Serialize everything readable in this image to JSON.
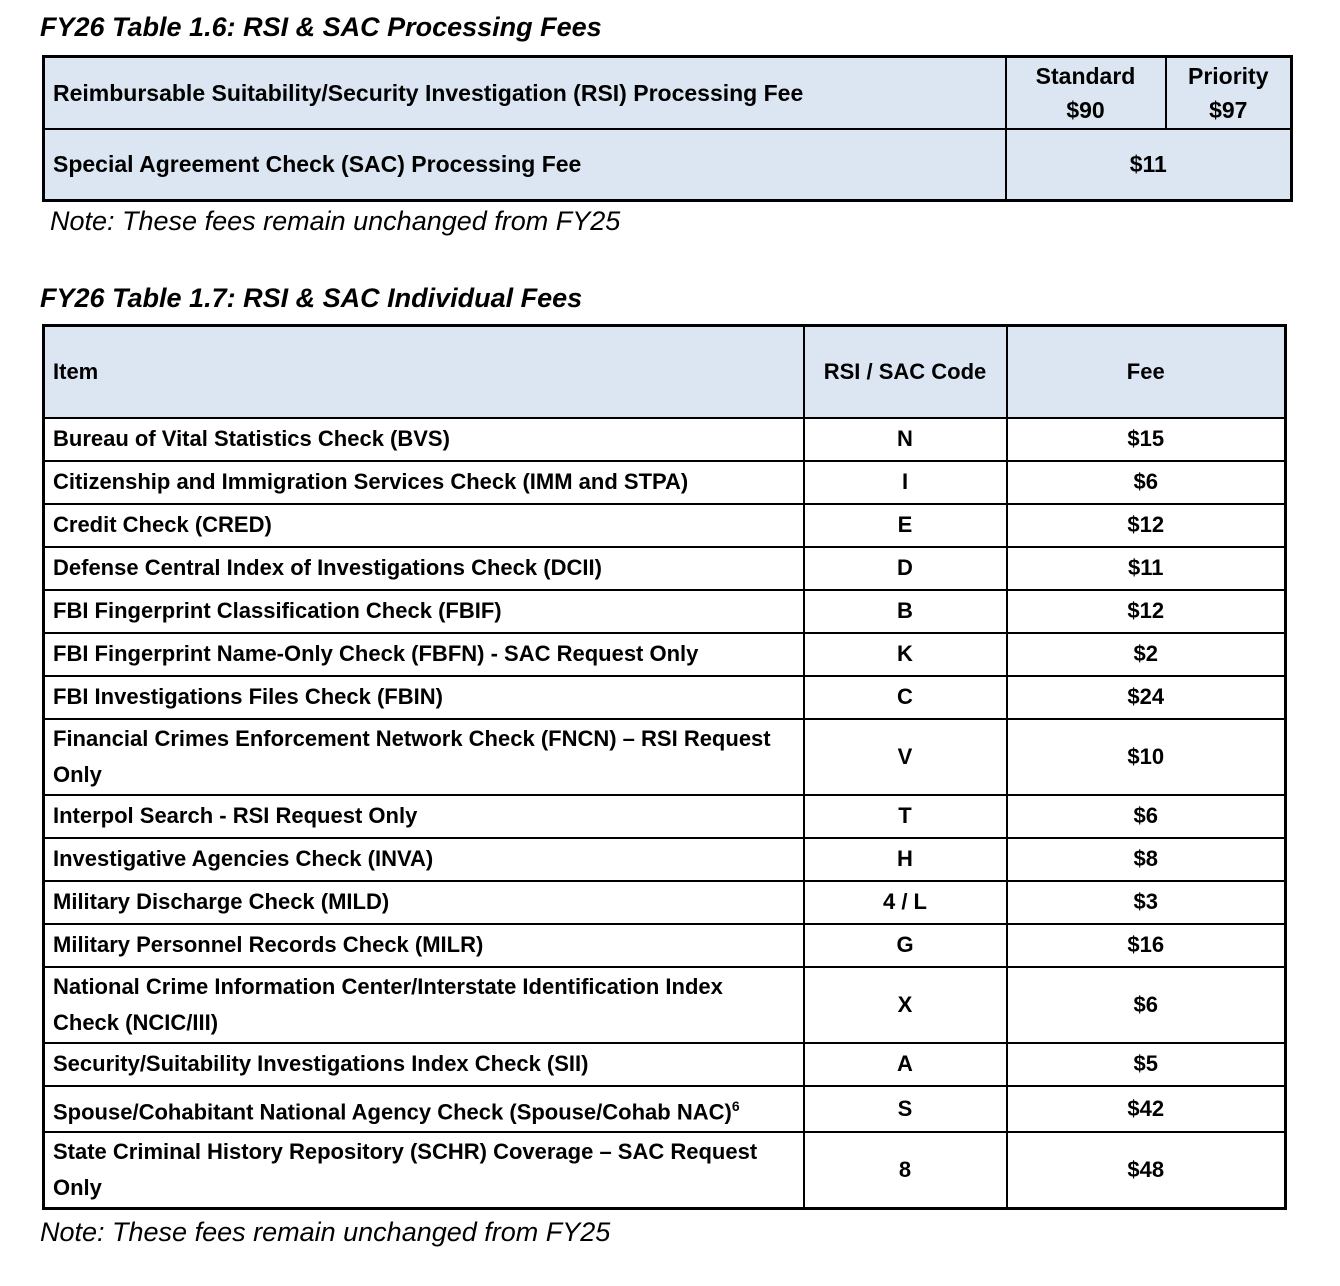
{
  "table_1_6": {
    "title": "FY26 Table 1.6: RSI & SAC Processing Fees",
    "rsi": {
      "item": "Reimbursable Suitability/Security Investigation (RSI) Processing Fee",
      "standard": {
        "label": "Standard",
        "fee": "$90"
      },
      "priority": {
        "label": "Priority",
        "fee": "$97"
      }
    },
    "sac": {
      "item": "Special Agreement Check (SAC) Processing Fee",
      "fee": "$11"
    },
    "note": "Note: These fees remain unchanged from FY25"
  },
  "table_1_7": {
    "title": "FY26 Table 1.7: RSI & SAC Individual Fees",
    "header": [
      "Item",
      "RSI / SAC Code",
      "Fee"
    ],
    "rows": [
      {
        "item": "Bureau of Vital Statistics Check (BVS)",
        "code": "N",
        "fee": "$15"
      },
      {
        "item": "Citizenship and Immigration Services Check (IMM and STPA)",
        "code": "I",
        "fee": "$6"
      },
      {
        "item": "Credit Check (CRED)",
        "code": "E",
        "fee": "$12"
      },
      {
        "item": "Defense Central Index of Investigations Check (DCII)",
        "code": "D",
        "fee": "$11"
      },
      {
        "item": "FBI Fingerprint Classification Check (FBIF)",
        "code": "B",
        "fee": "$12"
      },
      {
        "item": "FBI Fingerprint Name-Only Check (FBFN) - SAC Request Only",
        "code": "K",
        "fee": "$2"
      },
      {
        "item": "FBI Investigations Files Check (FBIN)",
        "code": "C",
        "fee": "$24"
      },
      {
        "item": "Financial Crimes Enforcement Network Check (FNCN) – RSI Request Only",
        "code": "V",
        "fee": "$10"
      },
      {
        "item": "Interpol Search - RSI Request Only",
        "code": "T",
        "fee": "$6"
      },
      {
        "item": "Investigative Agencies Check (INVA)",
        "code": "H",
        "fee": "$8"
      },
      {
        "item": "Military Discharge Check (MILD)",
        "code": "4 / L",
        "fee": "$3"
      },
      {
        "item": "Military Personnel Records Check (MILR)",
        "code": "G",
        "fee": "$16"
      },
      {
        "item": "National Crime Information Center/Interstate Identification Index Check (NCIC/III)",
        "code": "X",
        "fee": "$6"
      },
      {
        "item": "Security/Suitability Investigations Index Check (SII)",
        "code": "A",
        "fee": "$5"
      },
      {
        "item": "Spouse/Cohabitant National Agency Check (Spouse/Cohab NAC)",
        "footnote": "6",
        "code": "S",
        "fee": "$42"
      },
      {
        "item": "State Criminal History Repository (SCHR) Coverage – SAC Request Only",
        "code": "8",
        "fee": "$48"
      }
    ],
    "note": "Note: These fees remain unchanged from FY25"
  }
}
